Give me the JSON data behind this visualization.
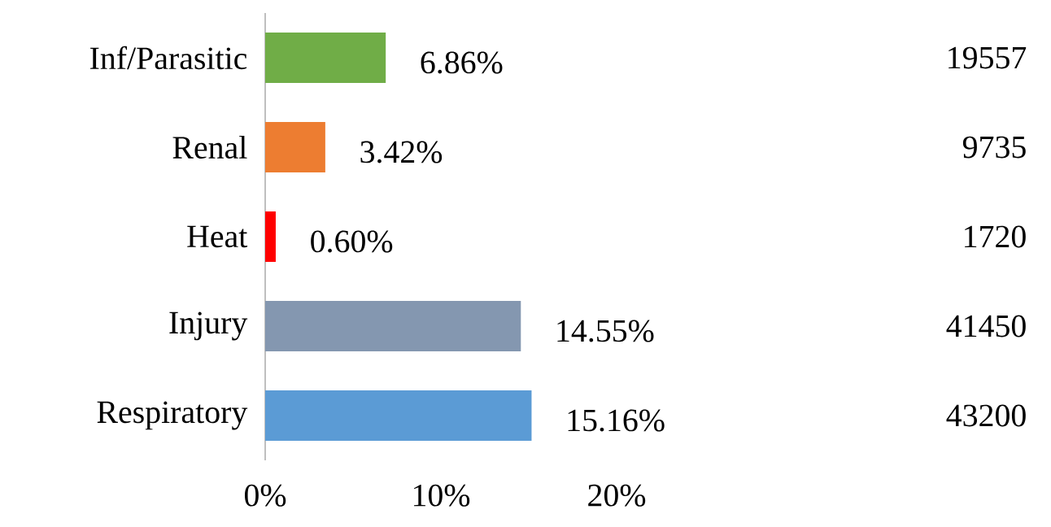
{
  "chart_data": {
    "type": "bar",
    "orientation": "horizontal",
    "categories": [
      "Inf/Parasitic",
      "Renal",
      "Heat",
      "Injury",
      "Respiratory"
    ],
    "values": [
      6.86,
      3.42,
      0.6,
      14.55,
      15.16
    ],
    "colors": [
      "#70ad47",
      "#ed7d31",
      "#ff0000",
      "#8497b0",
      "#5b9bd5"
    ],
    "value_labels": [
      "6.86%",
      "3.42%",
      "0.60%",
      "14.55%",
      "15.16%"
    ],
    "xlim": [
      0,
      20
    ],
    "xticks": [
      {
        "value": 0,
        "label": "0%"
      },
      {
        "value": 10,
        "label": "10%"
      },
      {
        "value": 20,
        "label": "20%"
      }
    ],
    "annotations": [
      "19557",
      "9735",
      "1720",
      "41450",
      "43200"
    ]
  }
}
